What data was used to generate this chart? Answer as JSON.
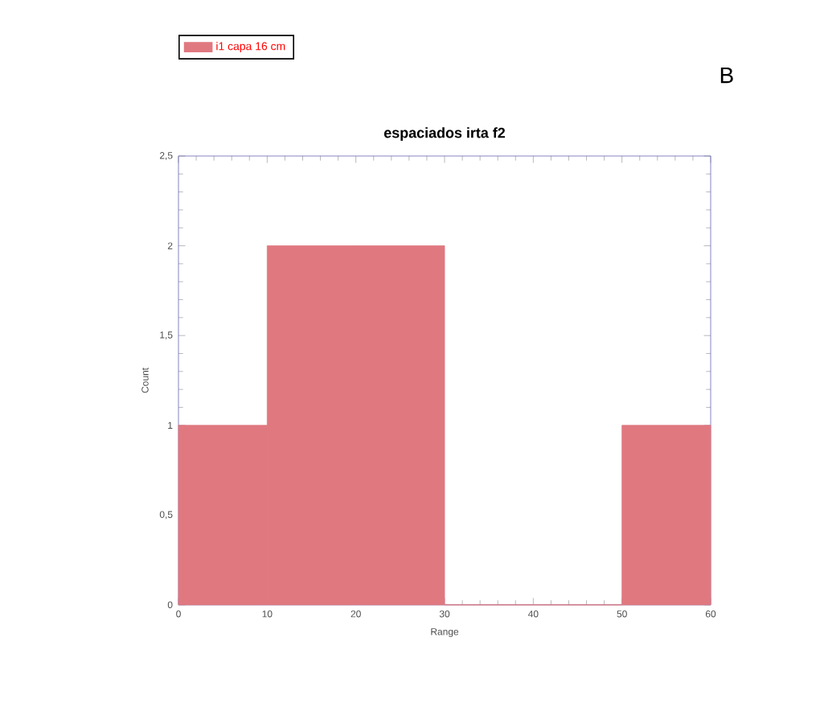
{
  "chart_data": {
    "type": "histogram",
    "title": "espaciados irta f2",
    "xlabel": "Range",
    "ylabel": "Count",
    "annotations": [
      "B"
    ],
    "series": [
      {
        "name": "i1 capa 16 cm",
        "color": "#e07880",
        "values": [
          1,
          2,
          2,
          0,
          0,
          1
        ]
      }
    ],
    "bins": [
      0,
      10,
      20,
      30,
      40,
      50,
      60
    ],
    "xlim": [
      0,
      60
    ],
    "xticks": [
      0,
      10,
      20,
      30,
      40,
      50,
      60
    ],
    "ylim": [
      0,
      2.5
    ],
    "yticks": [
      0,
      {
        "value": 0.5,
        "label": "0,5"
      },
      1,
      {
        "value": 1.5,
        "label": "1,5"
      },
      2,
      {
        "value": 2.5,
        "label": "2,5"
      }
    ],
    "grid": false,
    "legend": "top left"
  }
}
